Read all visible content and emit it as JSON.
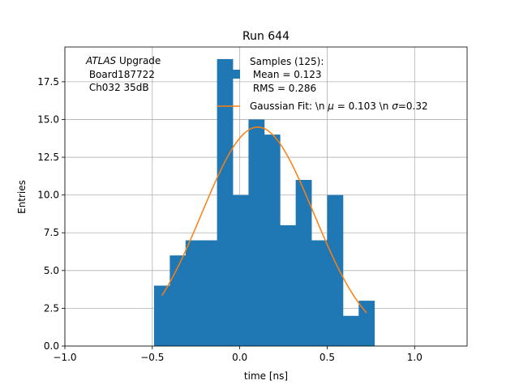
{
  "chart_data": {
    "type": "bar",
    "title": "Run 644",
    "xlabel": "time [ns]",
    "ylabel": "Entries",
    "xlim": [
      -1.0,
      1.3
    ],
    "ylim": [
      0,
      19.8
    ],
    "grid": true,
    "bin_width": 0.09,
    "histogram": {
      "name": "Samples (125):",
      "color": "#1f77b4",
      "bin_left_edges": [
        -0.49,
        -0.4,
        -0.31,
        -0.22,
        -0.13,
        -0.04,
        0.05,
        0.14,
        0.23,
        0.32,
        0.41,
        0.5,
        0.59,
        0.68
      ],
      "counts": [
        4,
        6,
        7,
        7,
        19,
        10,
        15,
        14,
        8,
        11,
        7,
        10,
        2,
        3
      ]
    },
    "fit": {
      "name": "Gaussian Fit: \\n $\\mu$ = 0.103 \\n $\\sigma$=0.32",
      "color": "#ff7f0e",
      "amplitude": 14.5,
      "mu": 0.103,
      "sigma": 0.32,
      "x_range": [
        -0.445,
        0.725
      ]
    },
    "x_ticks": [
      "−1.0",
      "−0.5",
      "0.0",
      "0.5",
      "1.0"
    ],
    "x_tick_values": [
      -1.0,
      -0.5,
      0.0,
      0.5,
      1.0
    ],
    "y_ticks": [
      "0.0",
      "2.5",
      "5.0",
      "7.5",
      "10.0",
      "12.5",
      "15.0",
      "17.5"
    ],
    "y_tick_values": [
      0,
      2.5,
      5.0,
      7.5,
      10.0,
      12.5,
      15.0,
      17.5
    ],
    "annotation": {
      "line1_italic": "ATLAS",
      "line1_rest": " Upgrade",
      "line2": " Board187722",
      "line3": " Ch032 35dB"
    },
    "legend": {
      "hist_label_line1": "Samples (125):",
      "hist_label_line2": " Mean = 0.123",
      "hist_label_line3": " RMS = 0.286",
      "fit_label_prefix": "Gaussian Fit: \\n ",
      "fit_mu_symbol": "μ",
      "fit_label_mid": " = 0.103 \\n ",
      "fit_sigma_symbol": "σ",
      "fit_label_end": "=0.32"
    }
  }
}
